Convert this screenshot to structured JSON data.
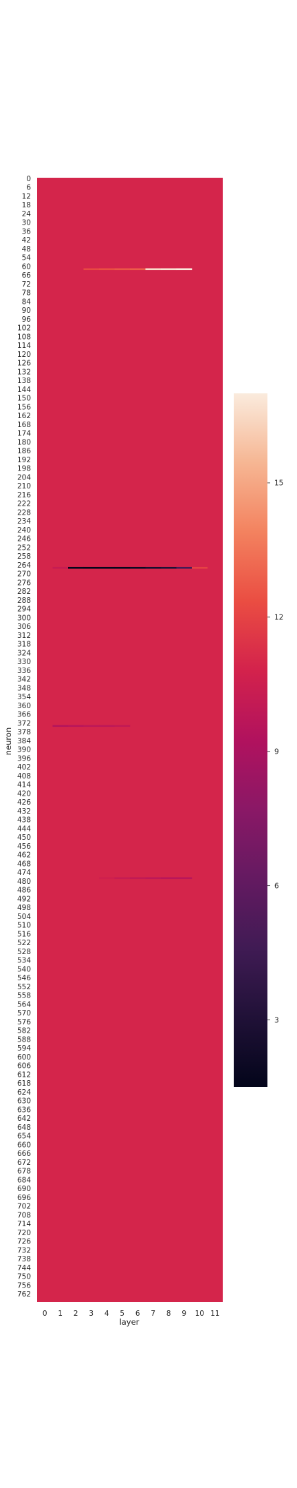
{
  "chart_data": {
    "type": "heatmap",
    "title": "",
    "xlabel": "layer",
    "ylabel": "neuron",
    "x_ticks": [
      "0",
      "1",
      "2",
      "3",
      "4",
      "5",
      "6",
      "7",
      "8",
      "9",
      "10",
      "11"
    ],
    "y_ticks": [
      "0",
      "6",
      "12",
      "18",
      "24",
      "30",
      "36",
      "42",
      "48",
      "54",
      "60",
      "66",
      "72",
      "78",
      "84",
      "90",
      "96",
      "102",
      "108",
      "114",
      "120",
      "126",
      "132",
      "138",
      "144",
      "150",
      "156",
      "162",
      "168",
      "174",
      "180",
      "186",
      "192",
      "198",
      "204",
      "210",
      "216",
      "222",
      "228",
      "234",
      "240",
      "246",
      "252",
      "258",
      "264",
      "270",
      "276",
      "282",
      "288",
      "294",
      "300",
      "306",
      "312",
      "318",
      "324",
      "330",
      "336",
      "342",
      "348",
      "354",
      "360",
      "366",
      "372",
      "378",
      "384",
      "390",
      "396",
      "402",
      "408",
      "414",
      "420",
      "426",
      "432",
      "438",
      "444",
      "450",
      "456",
      "462",
      "468",
      "474",
      "480",
      "486",
      "492",
      "498",
      "504",
      "510",
      "516",
      "522",
      "528",
      "534",
      "540",
      "546",
      "552",
      "558",
      "564",
      "570",
      "576",
      "582",
      "588",
      "594",
      "600",
      "606",
      "612",
      "618",
      "624",
      "630",
      "636",
      "642",
      "648",
      "654",
      "660",
      "666",
      "672",
      "678",
      "684",
      "690",
      "696",
      "702",
      "708",
      "714",
      "720",
      "726",
      "732",
      "738",
      "744",
      "750",
      "756",
      "762"
    ],
    "n_rows": 768,
    "n_cols": 12,
    "background_value": 10.9,
    "vmin": 1.5,
    "vmax": 17,
    "colormap": "rocket",
    "colorbar_ticks": [
      3,
      6,
      9,
      12,
      15
    ],
    "colorbar_labels": [
      "3",
      "6",
      "9",
      "12",
      "15"
    ],
    "highlighted_rows": [
      {
        "row": 62,
        "values": [
          10.9,
          10.9,
          10.9,
          12.2,
          12.4,
          12.6,
          12.8,
          16.6,
          16.8,
          17.0,
          10.9,
          10.9
        ]
      },
      {
        "row": 266,
        "values": [
          10.9,
          10.2,
          1.6,
          1.5,
          1.6,
          1.6,
          2.0,
          2.6,
          3.0,
          4.8,
          12.0,
          10.9
        ]
      },
      {
        "row": 374,
        "values": [
          10.9,
          9.4,
          9.6,
          9.8,
          9.8,
          10.0,
          10.9,
          10.9,
          10.9,
          10.9,
          10.9,
          10.9
        ]
      },
      {
        "row": 478,
        "values": [
          10.9,
          10.9,
          10.9,
          10.9,
          10.6,
          10.2,
          10.0,
          9.8,
          9.6,
          9.6,
          10.9,
          10.9
        ]
      }
    ]
  }
}
